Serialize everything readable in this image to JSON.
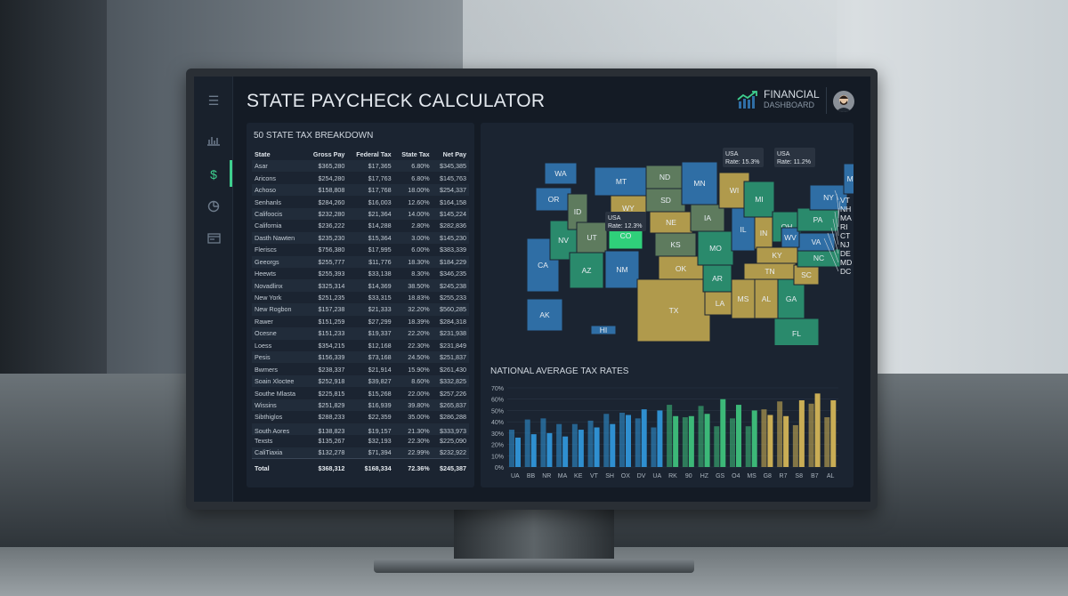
{
  "header": {
    "title": "STATE PAYCHECK CALCULATOR",
    "brand_line1": "FINANCIAL",
    "brand_line2": "DASHBOARD"
  },
  "sidebar": {
    "items": [
      {
        "icon": "menu-icon"
      },
      {
        "icon": "bar-chart-icon"
      },
      {
        "icon": "dollar-icon",
        "active": true
      },
      {
        "icon": "pie-chart-icon"
      },
      {
        "icon": "card-icon"
      }
    ]
  },
  "table": {
    "title": "50 STATE TAX BREAKDOWN",
    "columns": [
      "State",
      "Gross Pay",
      "Federal Tax",
      "State Tax",
      "Net Pay"
    ],
    "rows": [
      [
        "Asar",
        "$365,280",
        "$17,365",
        "6.80%",
        "$345,385"
      ],
      [
        "Aricons",
        "$254,280",
        "$17,763",
        "6.80%",
        "$145,763"
      ],
      [
        "Achoso",
        "$158,808",
        "$17,768",
        "18.00%",
        "$254,337"
      ],
      [
        "Senhanls",
        "$284,260",
        "$16,003",
        "12.60%",
        "$164,158"
      ],
      [
        "Califoocis",
        "$232,280",
        "$21,364",
        "14.00%",
        "$145,224"
      ],
      [
        "California",
        "$236,222",
        "$14,288",
        "2.80%",
        "$282,836"
      ],
      [
        "Dasth Nawten",
        "$235,230",
        "$15,364",
        "3.00%",
        "$145,230"
      ],
      [
        "Fleriscs",
        "$756,380",
        "$17,995",
        "6.00%",
        "$383,339"
      ],
      [
        "Geeorgs",
        "$255,777",
        "$11,776",
        "18.30%",
        "$184,229"
      ],
      [
        "Heewts",
        "$255,393",
        "$33,138",
        "8.30%",
        "$346,235"
      ],
      [
        "Novadlinx",
        "$325,314",
        "$14,369",
        "38.50%",
        "$245,238"
      ],
      [
        "New York",
        "$251,235",
        "$33,315",
        "18.83%",
        "$255,233"
      ],
      [
        "New Rogbon",
        "$157,238",
        "$21,333",
        "32.20%",
        "$560,285"
      ],
      [
        "Rawer",
        "$151,259",
        "$27,299",
        "18.39%",
        "$284,318"
      ],
      [
        "Ocesne",
        "$151,233",
        "$19,337",
        "22.20%",
        "$231,938"
      ],
      [
        "Loess",
        "$354,215",
        "$12,168",
        "22.30%",
        "$231,849"
      ],
      [
        "Pesis",
        "$156,339",
        "$73,168",
        "24.50%",
        "$251,837"
      ],
      [
        "Bwmers",
        "$238,337",
        "$21,914",
        "15.90%",
        "$261,430"
      ],
      [
        "Soain Xloctee",
        "$252,918",
        "$39,827",
        "8.60%",
        "$332,825"
      ],
      [
        "Southe Mlasta",
        "$225,815",
        "$15,268",
        "22.00%",
        "$257,226"
      ],
      [
        "Wissins",
        "$251,829",
        "$16,939",
        "39.80%",
        "$265,837"
      ],
      [
        "Sibthiglos",
        "$288,233",
        "$22,359",
        "35.00%",
        "$286,288"
      ],
      [
        "South Aores",
        "$138,823",
        "$19,157",
        "21.30%",
        "$333,973"
      ],
      [
        "Texsts",
        "$135,267",
        "$32,193",
        "22.30%",
        "$225,090"
      ],
      [
        "CaliTiaxia",
        "$132,278",
        "$71,394",
        "22.99%",
        "$232,922"
      ]
    ],
    "total": [
      "Total",
      "$368,312",
      "$168,334",
      "72.36%",
      "$245,387"
    ]
  },
  "map": {
    "states": [
      "WA",
      "OR",
      "CA",
      "NV",
      "ID",
      "MT",
      "WY",
      "UT",
      "CO",
      "AZ",
      "NM",
      "ND",
      "SD",
      "NE",
      "KS",
      "OK",
      "TX",
      "MN",
      "IA",
      "MO",
      "AR",
      "LA",
      "WI",
      "IL",
      "MI",
      "IN",
      "OH",
      "KY",
      "TN",
      "MS",
      "AL",
      "GA",
      "FL",
      "SC",
      "NC",
      "VA",
      "WV",
      "PA",
      "NY",
      "ME",
      "AK",
      "HI"
    ],
    "callouts": [
      "VT",
      "NH",
      "MA",
      "RI",
      "CT",
      "NJ",
      "DE",
      "MD",
      "DC"
    ],
    "tooltips": [
      {
        "label": "USA",
        "rate": "Rate: 11.2%"
      },
      {
        "label": "USA",
        "rate": "Rate: 12.3%"
      },
      {
        "label": "USA",
        "rate": "Rate: 15.3%"
      }
    ],
    "colors": {
      "blue": "#2f6ea5",
      "teal": "#2a8a6c",
      "olive": "#5e7b5e",
      "gold": "#b09a4c",
      "highlight": "#2fd07a"
    }
  },
  "chart_data": {
    "type": "bar",
    "title": "NATIONAL AVERAGE TAX RATES",
    "xlabel": "",
    "ylabel": "",
    "ylim": [
      0,
      70
    ],
    "yticks": [
      "0%",
      "10%",
      "20%",
      "30%",
      "40%",
      "50%",
      "60%",
      "70%"
    ],
    "categories": [
      "UA",
      "BB",
      "NR",
      "MA",
      "KE",
      "VT",
      "SH",
      "OX",
      "DV",
      "UA",
      "RK",
      "90",
      "HZ",
      "GS",
      "O4",
      "MS",
      "G8",
      "R7",
      "S8",
      "B7",
      "AL"
    ],
    "series": [
      {
        "name": "Series A",
        "values": [
          33,
          42,
          43,
          38,
          38,
          41,
          47,
          48,
          43,
          35,
          55,
          44,
          54,
          36,
          43,
          36,
          51,
          58,
          37,
          56,
          44
        ]
      },
      {
        "name": "Series B",
        "values": [
          26,
          29,
          30,
          27,
          33,
          35,
          38,
          46,
          51,
          50,
          45,
          45,
          47,
          60,
          55,
          50,
          46,
          45,
          59,
          65,
          59
        ]
      }
    ],
    "group_colors": [
      "#2f8fd0",
      "#2f8fd0",
      "#2f8fd0",
      "#2f8fd0",
      "#2f8fd0",
      "#2f8fd0",
      "#2f8fd0",
      "#2f8fd0",
      "#2f8fd0",
      "#2f8fd0",
      "#3cb878",
      "#3cb878",
      "#3cb878",
      "#3cb878",
      "#3cb878",
      "#3cb878",
      "#c9ad55",
      "#c9ad55",
      "#c9ad55",
      "#c9ad55",
      "#c9ad55"
    ],
    "grid": true,
    "legend": "none"
  }
}
